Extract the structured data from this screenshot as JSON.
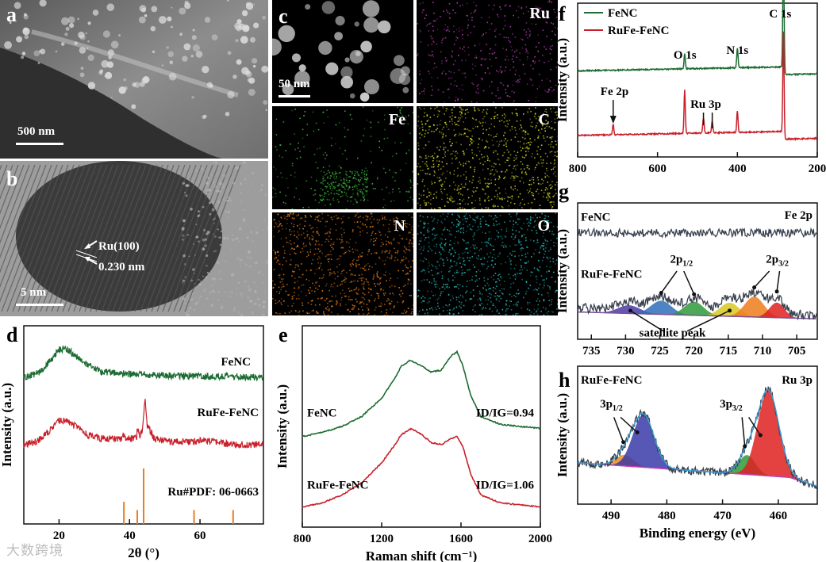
{
  "colors": {
    "green": "#1c6b32",
    "red": "#c8202a",
    "tick": "#e87f20",
    "bg": "#ffffff",
    "raw": "#3a4250"
  },
  "panel_labels": {
    "a": "a",
    "b": "b",
    "c": "c",
    "d": "d",
    "e": "e",
    "f": "f",
    "g": "g",
    "h": "h"
  },
  "sem": {
    "scale": "500 nm"
  },
  "tem": {
    "scale": "5 nm",
    "lattice_label": "Ru(100)",
    "spacing_label": "0.230 nm"
  },
  "eds": {
    "scale": "50 nm",
    "maps": [
      {
        "element": "",
        "color": "#000000"
      },
      {
        "element": "Ru",
        "color": "#c040b8"
      },
      {
        "element": "Fe",
        "color": "#3cbf3c"
      },
      {
        "element": "C",
        "color": "#d6d62a"
      },
      {
        "element": "N",
        "color": "#e07818"
      },
      {
        "element": "O",
        "color": "#25b8b8"
      }
    ]
  },
  "watermark": "大数跨境",
  "chart_data": [
    {
      "id": "d",
      "type": "line",
      "xlabel": "2θ (°)",
      "ylabel": "Intensity (a.u.)",
      "xlim": [
        10,
        78
      ],
      "xticks": [
        20,
        40,
        60
      ],
      "series": [
        {
          "name": "FeNC",
          "color": "#1c6b32",
          "x": [
            10,
            14,
            18,
            20,
            22,
            24,
            28,
            32,
            40,
            50,
            60,
            70,
            78
          ],
          "y": [
            0.74,
            0.76,
            0.83,
            0.88,
            0.885,
            0.86,
            0.8,
            0.77,
            0.755,
            0.75,
            0.745,
            0.743,
            0.74
          ]
        },
        {
          "name": "RuFe-FeNC",
          "color": "#c8202a",
          "x": [
            10,
            14,
            18,
            20,
            22,
            24,
            28,
            32,
            38,
            38.4,
            39,
            42,
            42.2,
            43,
            43.6,
            44,
            44.5,
            45,
            47,
            52,
            58,
            60,
            65,
            70,
            78
          ],
          "y": [
            0.4,
            0.42,
            0.48,
            0.52,
            0.52,
            0.5,
            0.45,
            0.43,
            0.43,
            0.46,
            0.43,
            0.43,
            0.48,
            0.44,
            0.47,
            0.55,
            0.63,
            0.5,
            0.43,
            0.415,
            0.415,
            0.425,
            0.41,
            0.4,
            0.4
          ]
        }
      ],
      "reference": {
        "name": "Ru#PDF: 06-0663",
        "color": "#e87f20",
        "x": [
          38.4,
          42.2,
          44.0,
          58.3,
          69.4
        ],
        "height": [
          0.4,
          0.25,
          1.0,
          0.25,
          0.25
        ]
      }
    },
    {
      "id": "e",
      "type": "line",
      "xlabel": "Raman shift (cm⁻¹)",
      "ylabel": "Intensity (a.u.)",
      "xlim": [
        800,
        2000
      ],
      "xticks": [
        800,
        1200,
        1600,
        2000
      ],
      "series": [
        {
          "name": "FeNC",
          "ratio_label": "ID/IG=0.94",
          "color": "#1c6b32",
          "x": [
            800,
            900,
            1000,
            1100,
            1200,
            1260,
            1300,
            1345,
            1400,
            1450,
            1500,
            1550,
            1580,
            1610,
            1650,
            1700,
            1800,
            1900,
            2000
          ],
          "y": [
            0.45,
            0.47,
            0.5,
            0.55,
            0.64,
            0.73,
            0.8,
            0.83,
            0.8,
            0.77,
            0.78,
            0.85,
            0.87,
            0.8,
            0.65,
            0.55,
            0.51,
            0.5,
            0.49
          ]
        },
        {
          "name": "RuFe-FeNC",
          "ratio_label": "ID/IG=1.06",
          "color": "#c8202a",
          "x": [
            800,
            900,
            1000,
            1100,
            1200,
            1260,
            1300,
            1350,
            1400,
            1450,
            1500,
            1550,
            1580,
            1610,
            1650,
            1700,
            1800,
            1900,
            2000
          ],
          "y": [
            0.1,
            0.12,
            0.16,
            0.22,
            0.32,
            0.4,
            0.46,
            0.49,
            0.46,
            0.42,
            0.41,
            0.44,
            0.45,
            0.4,
            0.26,
            0.16,
            0.12,
            0.11,
            0.1
          ]
        }
      ]
    },
    {
      "id": "f",
      "type": "line",
      "xlabel": "",
      "ylabel": "Intensity (a.u.)",
      "xlim": [
        800,
        200
      ],
      "xticks": [
        800,
        600,
        400,
        200
      ],
      "series": [
        {
          "name": "FeNC",
          "color": "#1c6b32",
          "base": 0.56,
          "peaks": [
            {
              "x": 532,
              "h": 0.1
            },
            {
              "x": 400,
              "h": 0.13
            },
            {
              "x": 284.6,
              "h": 0.75
            }
          ]
        },
        {
          "name": "RuFe-FeNC",
          "color": "#c8202a",
          "base": 0.14,
          "peaks": [
            {
              "x": 711,
              "h": 0.07
            },
            {
              "x": 532,
              "h": 0.28
            },
            {
              "x": 485,
              "h": 0.1
            },
            {
              "x": 463,
              "h": 0.08
            },
            {
              "x": 400,
              "h": 0.14
            },
            {
              "x": 284.6,
              "h": 0.67
            }
          ]
        }
      ],
      "annotations": [
        {
          "text": "C 1s",
          "x": 284.6
        },
        {
          "text": "O 1s",
          "x": 532
        },
        {
          "text": "N 1s",
          "x": 400
        },
        {
          "text": "Fe 2p",
          "x": 711
        },
        {
          "text": "Ru 3p",
          "x": 474
        }
      ]
    },
    {
      "id": "g",
      "type": "area",
      "title": "Fe 2p",
      "xlabel": "",
      "ylabel": "Intensity (a.u.)",
      "xlim": [
        737,
        702
      ],
      "xticks": [
        735,
        730,
        725,
        720,
        715,
        710,
        705
      ],
      "series": [
        {
          "name": "FeNC",
          "color": "#3a4250",
          "base": 0.78
        },
        {
          "name": "RuFe-FeNC",
          "color": "#3a4250",
          "base": 0.2
        }
      ],
      "fit_peaks": [
        {
          "x": 729.5,
          "h": 0.06,
          "w": 1.6,
          "color": "#4b3aa8"
        },
        {
          "x": 724.8,
          "h": 0.1,
          "w": 1.5,
          "color": "#2f6fb8"
        },
        {
          "x": 720.0,
          "h": 0.1,
          "w": 1.4,
          "color": "#2e9a3a"
        },
        {
          "x": 714.8,
          "h": 0.1,
          "w": 1.4,
          "color": "#d8c820"
        },
        {
          "x": 711.2,
          "h": 0.15,
          "w": 1.4,
          "color": "#ef7d1a"
        },
        {
          "x": 707.9,
          "h": 0.11,
          "w": 1.1,
          "color": "#df2020"
        }
      ],
      "annotations": [
        {
          "text": "2p1/2",
          "main": "2p",
          "sub": "1/2"
        },
        {
          "text": "2p3/2",
          "main": "2p",
          "sub": "3/2"
        },
        {
          "text": "satellite peak"
        }
      ]
    },
    {
      "id": "h",
      "type": "area",
      "title": "Ru 3p",
      "subtitle": "RuFe-FeNC",
      "xlabel": "Binding energy (eV)",
      "ylabel": "Intensity (a.u.)",
      "xlim": [
        496,
        453
      ],
      "xticks": [
        490,
        480,
        470,
        460
      ],
      "fit_peaks": [
        {
          "x": 487.6,
          "h": 0.08,
          "w": 1.6,
          "color": "#ef8a1a"
        },
        {
          "x": 484.2,
          "h": 0.38,
          "w": 1.9,
          "color": "#3a3aa8"
        },
        {
          "x": 465.6,
          "h": 0.14,
          "w": 1.5,
          "color": "#2e9a3a"
        },
        {
          "x": 461.8,
          "h": 0.62,
          "w": 1.9,
          "color": "#df2020"
        }
      ],
      "annotations": [
        {
          "text": "3p1/2",
          "main": "3p",
          "sub": "1/2"
        },
        {
          "text": "3p3/2",
          "main": "3p",
          "sub": "3/2"
        }
      ]
    }
  ]
}
